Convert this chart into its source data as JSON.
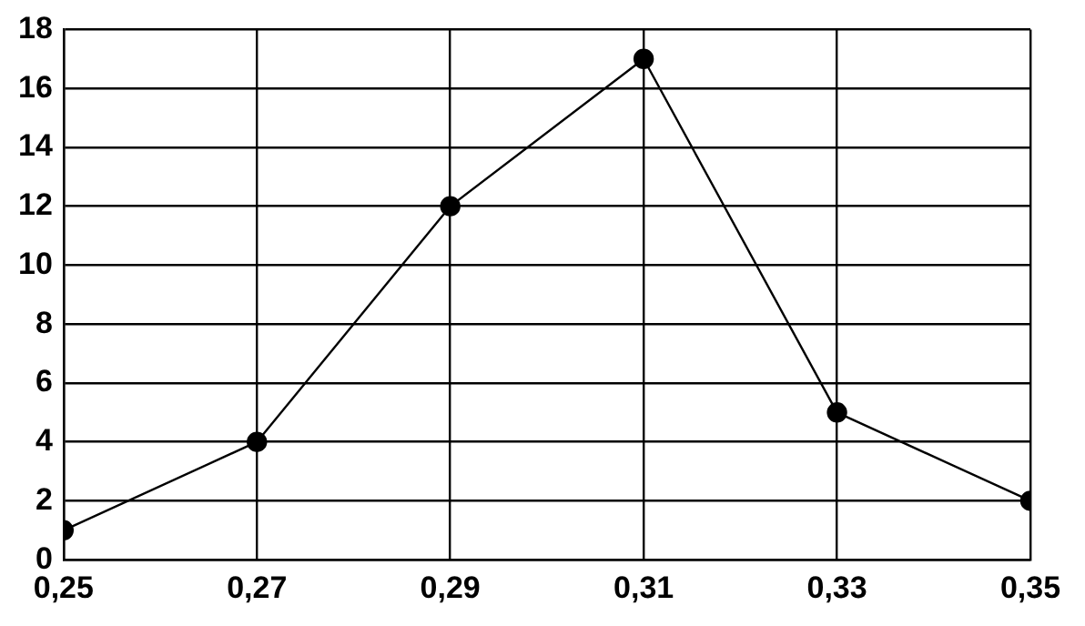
{
  "chart_data": {
    "type": "line",
    "x": [
      0.25,
      0.27,
      0.29,
      0.31,
      0.33,
      0.35
    ],
    "series": [
      {
        "color": "#000000",
        "values": [
          1,
          4,
          12,
          17,
          5,
          2
        ]
      }
    ],
    "xlim": [
      0.25,
      0.35
    ],
    "xticks": [
      {
        "value": 0.25,
        "label": "0,25"
      },
      {
        "value": 0.27,
        "label": "0,27"
      },
      {
        "value": 0.29,
        "label": "0,29"
      },
      {
        "value": 0.31,
        "label": "0,31"
      },
      {
        "value": 0.33,
        "label": "0,33"
      },
      {
        "value": 0.35,
        "label": "0,35"
      }
    ],
    "ylim": [
      0,
      18
    ],
    "yticks": [
      0,
      2,
      4,
      6,
      8,
      10,
      12,
      14,
      16,
      18
    ],
    "grid": true,
    "marker": "circle",
    "line_style": "solid"
  }
}
